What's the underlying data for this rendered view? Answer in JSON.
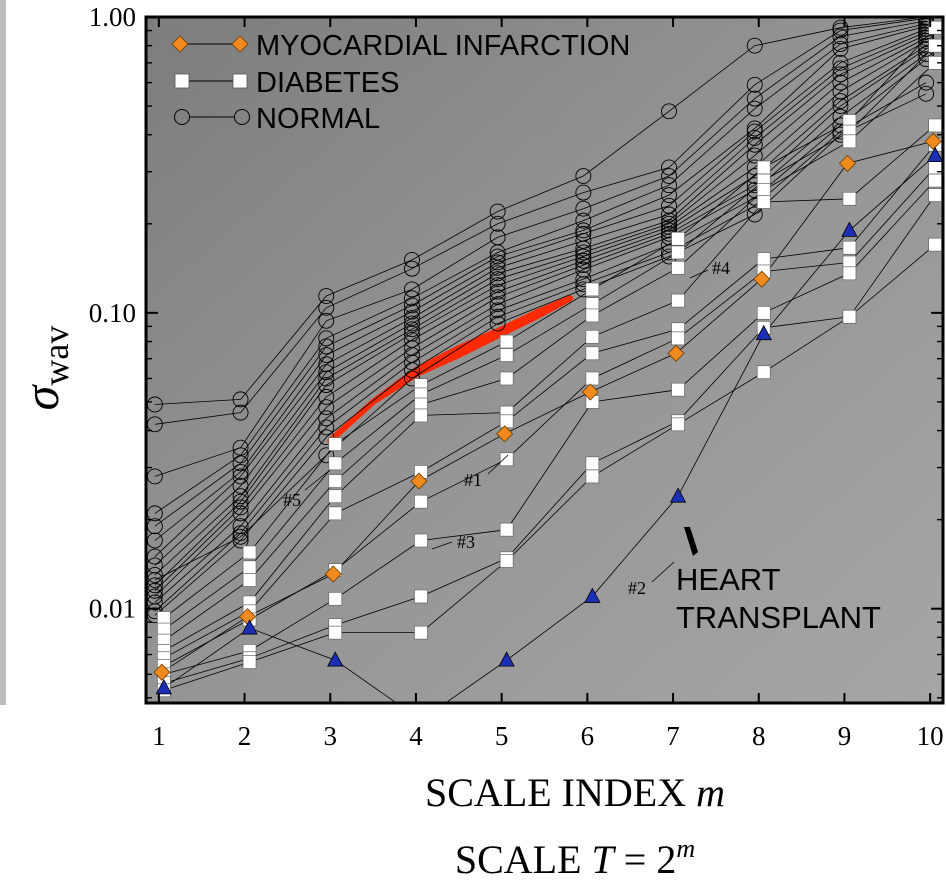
{
  "chart_data": {
    "type": "scatter",
    "x_scale": "linear",
    "y_scale": "log",
    "xlim": [
      0.85,
      10.15
    ],
    "ylim": [
      0.0048,
      1.0
    ],
    "x_ticks": [
      1,
      2,
      3,
      4,
      5,
      6,
      7,
      8,
      9,
      10
    ],
    "x_tick_labels": [
      "1",
      "2",
      "3",
      "4",
      "5",
      "6",
      "7",
      "8",
      "9",
      "10"
    ],
    "y_ticks": [
      0.01,
      0.1,
      1.0
    ],
    "y_tick_labels": [
      "0.01",
      "0.10",
      "1.00"
    ],
    "xlabel_text": "SCALE INDEX ",
    "xlabel_var": "m",
    "secondary_label_prefix": "SCALE ",
    "secondary_label_var": "T",
    "secondary_label_eq": " = 2",
    "secondary_label_exp": "m",
    "ylabel_symbol": "σ",
    "ylabel_sub": "wav",
    "legend_position": "top-left",
    "legend": [
      {
        "label": "MYOCARDIAL INFARCTION",
        "marker": "diamond",
        "color": "#f08a1e"
      },
      {
        "label": "DIABETES",
        "marker": "square",
        "color": "#ffffff"
      },
      {
        "label": "NORMAL",
        "marker": "circle",
        "color": "none"
      }
    ],
    "annotations": {
      "heart_transplant_line1": "HEART",
      "heart_transplant_line2": "TRANSPLANT",
      "label_1": "#1",
      "label_2": "#2",
      "label_3": "#3",
      "label_4": "#4",
      "label_5": "#5"
    },
    "series": [
      {
        "group": "normal",
        "points": [
          [
            1,
            0.049
          ],
          [
            2,
            0.051
          ],
          [
            3,
            0.114
          ],
          [
            4,
            0.151
          ],
          [
            5,
            0.22
          ],
          [
            6,
            0.29
          ],
          [
            7,
            0.48
          ],
          [
            8,
            0.8
          ],
          [
            9,
            0.92
          ],
          [
            10,
            1.0
          ]
        ]
      },
      {
        "group": "normal",
        "points": [
          [
            1,
            0.042
          ],
          [
            2,
            0.046
          ],
          [
            3,
            0.104
          ],
          [
            4,
            0.141
          ],
          [
            5,
            0.2
          ],
          [
            6,
            0.255
          ],
          [
            7,
            0.31
          ],
          [
            8,
            0.59
          ],
          [
            9,
            0.9
          ],
          [
            10,
            0.99
          ]
        ]
      },
      {
        "group": "normal",
        "points": [
          [
            1,
            0.028
          ],
          [
            2,
            0.035
          ],
          [
            3,
            0.094
          ],
          [
            4,
            0.12
          ],
          [
            5,
            0.18
          ],
          [
            6,
            0.225
          ],
          [
            7,
            0.29
          ],
          [
            8,
            0.53
          ],
          [
            9,
            0.86
          ],
          [
            10,
            0.97
          ]
        ]
      },
      {
        "group": "normal",
        "points": [
          [
            1,
            0.021
          ],
          [
            2,
            0.033
          ],
          [
            3,
            0.082
          ],
          [
            4,
            0.112
          ],
          [
            5,
            0.16
          ],
          [
            6,
            0.205
          ],
          [
            7,
            0.27
          ],
          [
            8,
            0.49
          ],
          [
            9,
            0.81
          ],
          [
            10,
            0.95
          ]
        ]
      },
      {
        "group": "normal",
        "points": [
          [
            1,
            0.019
          ],
          [
            2,
            0.031
          ],
          [
            3,
            0.077
          ],
          [
            4,
            0.106
          ],
          [
            5,
            0.155
          ],
          [
            6,
            0.19
          ],
          [
            7,
            0.25
          ],
          [
            8,
            0.42
          ],
          [
            9,
            0.78
          ],
          [
            10,
            0.93
          ]
        ]
      },
      {
        "group": "normal",
        "points": [
          [
            1,
            0.017
          ],
          [
            2,
            0.029
          ],
          [
            3,
            0.072
          ],
          [
            4,
            0.101
          ],
          [
            5,
            0.148
          ],
          [
            6,
            0.185
          ],
          [
            7,
            0.23
          ],
          [
            8,
            0.41
          ],
          [
            9,
            0.7
          ],
          [
            10,
            0.91
          ]
        ]
      },
      {
        "group": "normal",
        "points": [
          [
            1,
            0.015
          ],
          [
            2,
            0.028
          ],
          [
            3,
            0.067
          ],
          [
            4,
            0.096
          ],
          [
            5,
            0.142
          ],
          [
            6,
            0.175
          ],
          [
            7,
            0.215
          ],
          [
            8,
            0.39
          ],
          [
            9,
            0.67
          ],
          [
            10,
            0.89
          ]
        ]
      },
      {
        "group": "normal",
        "points": [
          [
            1,
            0.014
          ],
          [
            2,
            0.026
          ],
          [
            3,
            0.063
          ],
          [
            4,
            0.092
          ],
          [
            5,
            0.136
          ],
          [
            6,
            0.165
          ],
          [
            7,
            0.205
          ],
          [
            8,
            0.37
          ],
          [
            9,
            0.64
          ],
          [
            10,
            0.87
          ]
        ]
      },
      {
        "group": "normal",
        "points": [
          [
            1,
            0.013
          ],
          [
            2,
            0.024
          ],
          [
            3,
            0.06
          ],
          [
            4,
            0.088
          ],
          [
            5,
            0.13
          ],
          [
            6,
            0.16
          ],
          [
            7,
            0.2
          ],
          [
            8,
            0.34
          ],
          [
            9,
            0.6
          ],
          [
            10,
            0.85
          ]
        ]
      },
      {
        "group": "normal",
        "points": [
          [
            1,
            0.012
          ],
          [
            2,
            0.023
          ],
          [
            3,
            0.057
          ],
          [
            4,
            0.085
          ],
          [
            5,
            0.124
          ],
          [
            6,
            0.155
          ],
          [
            7,
            0.195
          ],
          [
            8,
            0.31
          ],
          [
            9,
            0.56
          ],
          [
            10,
            0.83
          ]
        ]
      },
      {
        "group": "normal",
        "points": [
          [
            1,
            0.0115
          ],
          [
            2,
            0.022
          ],
          [
            3,
            0.052
          ],
          [
            4,
            0.081
          ],
          [
            5,
            0.118
          ],
          [
            6,
            0.15
          ],
          [
            7,
            0.19
          ],
          [
            8,
            0.29
          ],
          [
            9,
            0.52
          ],
          [
            10,
            0.8
          ]
        ]
      },
      {
        "group": "normal",
        "points": [
          [
            1,
            0.011
          ],
          [
            2,
            0.021
          ],
          [
            3,
            0.048
          ],
          [
            4,
            0.076
          ],
          [
            5,
            0.113
          ],
          [
            6,
            0.145
          ],
          [
            7,
            0.185
          ],
          [
            8,
            0.27
          ],
          [
            9,
            0.5
          ],
          [
            10,
            0.78
          ]
        ]
      },
      {
        "group": "normal",
        "points": [
          [
            1,
            0.0105
          ],
          [
            2,
            0.019
          ],
          [
            3,
            0.044
          ],
          [
            4,
            0.072
          ],
          [
            5,
            0.107
          ],
          [
            6,
            0.14
          ],
          [
            7,
            0.18
          ],
          [
            8,
            0.26
          ],
          [
            9,
            0.46
          ],
          [
            10,
            0.75
          ]
        ]
      },
      {
        "group": "normal",
        "points": [
          [
            1,
            0.0098
          ],
          [
            2,
            0.018
          ],
          [
            3,
            0.041
          ],
          [
            4,
            0.068
          ],
          [
            5,
            0.102
          ],
          [
            6,
            0.13
          ],
          [
            7,
            0.17
          ],
          [
            8,
            0.245
          ],
          [
            9,
            0.43
          ],
          [
            10,
            0.72
          ]
        ]
      },
      {
        "group": "normal",
        "points": [
          [
            1,
            0.0095
          ],
          [
            2,
            0.017
          ],
          [
            3,
            0.038
          ],
          [
            4,
            0.064
          ],
          [
            5,
            0.097
          ],
          [
            6,
            0.125
          ],
          [
            7,
            0.16
          ],
          [
            8,
            0.23
          ],
          [
            9,
            0.41
          ],
          [
            10,
            0.6
          ]
        ]
      },
      {
        "group": "normal",
        "points": [
          [
            1,
            0.0125
          ],
          [
            2,
            0.0175
          ],
          [
            3,
            0.033
          ],
          [
            4,
            0.06
          ],
          [
            5,
            0.092
          ],
          [
            6,
            0.12
          ],
          [
            7,
            0.155
          ],
          [
            8,
            0.215
          ],
          [
            9,
            0.4
          ],
          [
            10,
            0.55
          ]
        ]
      },
      {
        "group": "diabetes",
        "points": [
          [
            1,
            0.0093
          ],
          [
            2,
            0.0155
          ],
          [
            3,
            0.036
          ],
          [
            4,
            0.057
          ],
          [
            5,
            0.08
          ],
          [
            6,
            0.12
          ],
          [
            7,
            0.178
          ],
          [
            8,
            0.31
          ],
          [
            9,
            0.445
          ],
          [
            10,
            0.92
          ]
        ]
      },
      {
        "group": "diabetes",
        "points": [
          [
            1,
            0.0085
          ],
          [
            2,
            0.0138
          ],
          [
            3,
            0.031
          ],
          [
            4,
            0.053
          ],
          [
            5,
            0.072
          ],
          [
            6,
            0.107
          ],
          [
            7,
            0.16
          ],
          [
            8,
            0.28
          ],
          [
            9,
            0.41
          ],
          [
            10,
            0.8
          ]
        ]
      },
      {
        "group": "diabetes",
        "points": [
          [
            1,
            0.0078
          ],
          [
            2,
            0.0125
          ],
          [
            3,
            0.027
          ],
          [
            4,
            0.049
          ],
          [
            5,
            0.06
          ],
          [
            6,
            0.098
          ],
          [
            7,
            0.142
          ],
          [
            8,
            0.26
          ],
          [
            9,
            0.38
          ],
          [
            10,
            0.7
          ]
        ]
      },
      {
        "group": "diabetes",
        "points": [
          [
            1,
            0.0072
          ],
          [
            2,
            0.0105
          ],
          [
            3,
            0.024
          ],
          [
            4,
            0.045
          ],
          [
            5,
            0.046
          ],
          [
            6,
            0.083
          ],
          [
            7,
            0.11
          ],
          [
            8,
            0.237
          ],
          [
            9,
            0.243
          ],
          [
            10,
            0.43
          ]
        ]
      },
      {
        "group": "diabetes",
        "points": [
          [
            1,
            0.0068
          ],
          [
            2,
            0.0098
          ],
          [
            3,
            0.021
          ],
          [
            4,
            0.029
          ],
          [
            5,
            0.043
          ],
          [
            6,
            0.073
          ],
          [
            7,
            0.088
          ],
          [
            8,
            0.152
          ],
          [
            9,
            0.166
          ],
          [
            10,
            0.37
          ]
        ]
      },
      {
        "group": "diabetes",
        "points": [
          [
            1,
            0.0064
          ],
          [
            2,
            0.0092
          ],
          [
            3,
            0.0135
          ],
          [
            4,
            0.023
          ],
          [
            5,
            0.032
          ],
          [
            6,
            0.06
          ],
          [
            7,
            0.082
          ],
          [
            8,
            0.138
          ],
          [
            9,
            0.148
          ],
          [
            10,
            0.31
          ]
        ]
      },
      {
        "group": "diabetes",
        "points": [
          [
            1,
            0.006
          ],
          [
            2,
            0.0072
          ],
          [
            3,
            0.0108
          ],
          [
            4,
            0.017
          ],
          [
            5,
            0.0185
          ],
          [
            6,
            0.05
          ],
          [
            7,
            0.055
          ],
          [
            8,
            0.1
          ],
          [
            9,
            0.136
          ],
          [
            10,
            0.28
          ]
        ]
      },
      {
        "group": "diabetes",
        "points": [
          [
            1,
            0.0056
          ],
          [
            2,
            0.0068
          ],
          [
            3,
            0.0088
          ],
          [
            4,
            0.011
          ],
          [
            5,
            0.0148
          ],
          [
            6,
            0.031
          ],
          [
            7,
            0.043
          ],
          [
            8,
            0.089
          ],
          [
            9,
            0.097
          ],
          [
            10,
            0.25
          ]
        ]
      },
      {
        "group": "diabetes",
        "points": [
          [
            1,
            0.0053
          ],
          [
            2,
            0.0066
          ],
          [
            3,
            0.0083
          ],
          [
            4,
            0.0083
          ],
          [
            5,
            0.0145
          ],
          [
            6,
            0.028
          ],
          [
            7,
            0.042
          ],
          [
            8,
            0.063
          ],
          [
            9,
            0.097
          ],
          [
            10,
            0.17
          ]
        ]
      },
      {
        "group": "mi",
        "points": [
          [
            1,
            0.0061
          ],
          [
            2,
            0.0094
          ],
          [
            3,
            0.0131
          ],
          [
            4,
            0.027
          ],
          [
            5,
            0.039
          ],
          [
            6,
            0.054
          ],
          [
            7,
            0.073
          ],
          [
            8,
            0.13
          ],
          [
            9,
            0.32
          ],
          [
            10,
            0.38
          ]
        ]
      },
      {
        "group": "transplant",
        "points": [
          [
            1,
            0.0054
          ],
          [
            2,
            0.0086
          ],
          [
            3,
            0.0067
          ],
          [
            4,
            0.0042
          ],
          [
            5,
            0.0067
          ],
          [
            6,
            0.011
          ],
          [
            7,
            0.024
          ],
          [
            8,
            0.085
          ],
          [
            9,
            0.19
          ],
          [
            10,
            0.34
          ]
        ]
      }
    ],
    "red_band_upper": [
      [
        3.0,
        0.037
      ],
      [
        3.5,
        0.05
      ],
      [
        4.0,
        0.062
      ],
      [
        4.5,
        0.072
      ],
      [
        5.0,
        0.085
      ],
      [
        5.4,
        0.097
      ],
      [
        5.8,
        0.112
      ]
    ],
    "red_band_lower": [
      [
        5.8,
        0.112
      ],
      [
        5.4,
        0.1
      ],
      [
        5.0,
        0.088
      ],
      [
        4.5,
        0.076
      ],
      [
        4.0,
        0.064
      ],
      [
        3.5,
        0.05
      ],
      [
        3.0,
        0.037
      ]
    ],
    "colors": {
      "mi": "#f08a1e",
      "diabetes": "#ffffff",
      "transplant": "#1a2fb5",
      "band": "#ff2a00"
    }
  }
}
